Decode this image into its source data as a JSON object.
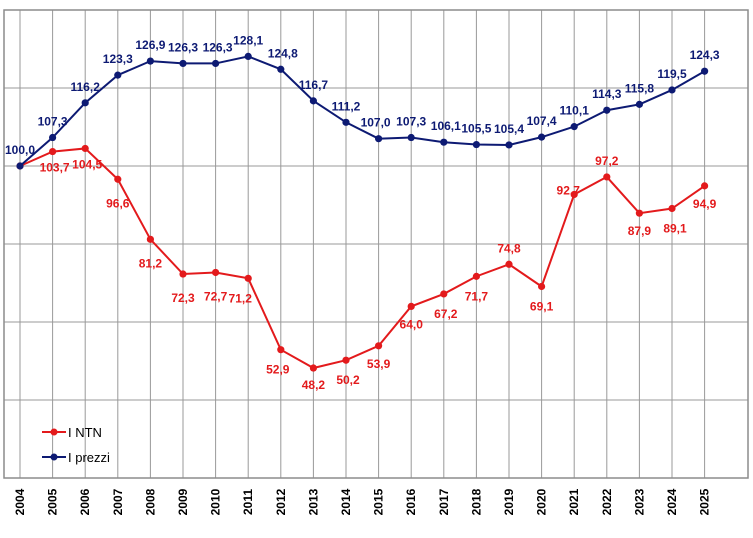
{
  "chart_data": {
    "type": "line",
    "x": [
      "2004",
      "2005",
      "2006",
      "2007",
      "2008",
      "2009",
      "2010",
      "2011",
      "2012",
      "2013",
      "2014",
      "2015",
      "2016",
      "2017",
      "2018",
      "2019",
      "2020",
      "2021",
      "2022",
      "2023",
      "2024",
      "2025"
    ],
    "series": [
      {
        "name": "I NTN",
        "color": "#e31a1c",
        "values": [
          100.0,
          103.7,
          104.5,
          96.6,
          81.2,
          72.3,
          72.7,
          71.2,
          52.9,
          48.2,
          50.2,
          53.9,
          64.0,
          67.2,
          71.7,
          74.8,
          69.1,
          92.7,
          97.2,
          87.9,
          89.1,
          94.9
        ],
        "labels": [
          "",
          "103,7",
          "104,5",
          "96,6",
          "81,2",
          "72,3",
          "72,7",
          "71,2",
          "52,9",
          "48,2",
          "50,2",
          "53,9",
          "64,0",
          "67,2",
          "71,7",
          "74,8",
          "69,1",
          "92,7",
          "97,2",
          "87,9",
          "89,1",
          "94,9"
        ]
      },
      {
        "name": "I prezzi",
        "color": "#0d1a73",
        "values": [
          100.0,
          107.3,
          116.2,
          123.3,
          126.9,
          126.3,
          126.3,
          128.1,
          124.8,
          116.7,
          111.2,
          107.0,
          107.3,
          106.1,
          105.5,
          105.4,
          107.4,
          110.1,
          114.3,
          115.8,
          119.5,
          124.3
        ],
        "labels": [
          "100,0",
          "107,3",
          "116,2",
          "123,3",
          "126,9",
          "126,3",
          "126,3",
          "128,1",
          "124,8",
          "116,7",
          "111,2",
          "107,0",
          "107,3",
          "106,1",
          "105,5",
          "105,4",
          "107,4",
          "110,1",
          "114,3",
          "115,8",
          "119,5",
          "124,3"
        ]
      }
    ],
    "ylim": [
      20,
      140
    ],
    "grid": true,
    "legend_position": "bottom-left"
  }
}
